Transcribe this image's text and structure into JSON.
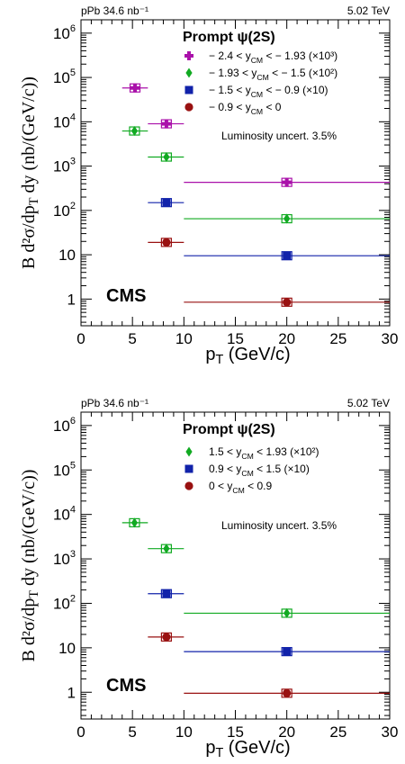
{
  "chart_data": [
    {
      "type": "scatter",
      "title": "Prompt ψ(2S)",
      "top_left_label": "pPb 34.6 nb⁻¹",
      "top_right_label": "5.02 TeV",
      "annotation": "Luminosity uncert. 3.5%",
      "logo": "CMS",
      "xlabel": "p_T (GeV/c)",
      "ylabel": "B d²σ/dp_T dy (nb/(GeV/c))",
      "xlim": [
        0,
        30
      ],
      "ylim": [
        0.25,
        2000000
      ],
      "yscale": "log",
      "xticks": [
        "0",
        "5",
        "10",
        "15",
        "20",
        "25",
        "30"
      ],
      "yticks": [
        "1",
        "10",
        "10²",
        "10³",
        "10⁴",
        "10⁵",
        "10⁶"
      ],
      "series": [
        {
          "name": "− 2.4 < y_CM < − 1.93 (×10³)",
          "color": "#aa11aa",
          "marker": "cross",
          "points": [
            {
              "x": 5.25,
              "y": 58000,
              "xlow": 4.0,
              "xhigh": 6.5
            },
            {
              "x": 8.3,
              "y": 9000,
              "xlow": 6.5,
              "xhigh": 10.0
            },
            {
              "x": 20.0,
              "y": 430,
              "xlow": 10.0,
              "xhigh": 30.0
            }
          ]
        },
        {
          "name": "− 1.93 < y_CM < − 1.5 (×10²)",
          "color": "#11aa22",
          "marker": "diamond",
          "points": [
            {
              "x": 5.2,
              "y": 6200,
              "xlow": 4.0,
              "xhigh": 6.5
            },
            {
              "x": 8.3,
              "y": 1600,
              "xlow": 6.5,
              "xhigh": 10.0
            },
            {
              "x": 20.0,
              "y": 65,
              "xlow": 10.0,
              "xhigh": 30.0
            }
          ]
        },
        {
          "name": "− 1.5 < y_CM < − 0.9 (×10)",
          "color": "#1122aa",
          "marker": "square",
          "points": [
            {
              "x": 8.3,
              "y": 150,
              "xlow": 6.5,
              "xhigh": 10.0
            },
            {
              "x": 20.0,
              "y": 9.5,
              "xlow": 10.0,
              "xhigh": 30.0
            }
          ]
        },
        {
          "name": "− 0.9 < y_CM < 0",
          "color": "#991111",
          "marker": "circle",
          "points": [
            {
              "x": 8.3,
              "y": 19,
              "xlow": 6.5,
              "xhigh": 10.0
            },
            {
              "x": 20.0,
              "y": 0.85,
              "xlow": 10.0,
              "xhigh": 30.0
            }
          ]
        }
      ]
    },
    {
      "type": "scatter",
      "title": "Prompt ψ(2S)",
      "top_left_label": "pPb 34.6 nb⁻¹",
      "top_right_label": "5.02 TeV",
      "annotation": "Luminosity uncert. 3.5%",
      "logo": "CMS",
      "xlabel": "p_T (GeV/c)",
      "ylabel": "B d²σ/dp_T dy (nb/(GeV/c))",
      "xlim": [
        0,
        30
      ],
      "ylim": [
        0.25,
        2000000
      ],
      "yscale": "log",
      "xticks": [
        "0",
        "5",
        "10",
        "15",
        "20",
        "25",
        "30"
      ],
      "yticks": [
        "1",
        "10",
        "10²",
        "10³",
        "10⁴",
        "10⁵",
        "10⁶"
      ],
      "series": [
        {
          "name": "1.5 < y_CM < 1.93 (×10²)",
          "color": "#11aa22",
          "marker": "diamond",
          "points": [
            {
              "x": 5.2,
              "y": 6500,
              "xlow": 4.0,
              "xhigh": 6.5
            },
            {
              "x": 8.3,
              "y": 1700,
              "xlow": 6.5,
              "xhigh": 10.0
            },
            {
              "x": 20.0,
              "y": 60,
              "xlow": 10.0,
              "xhigh": 30.0
            }
          ]
        },
        {
          "name": "0.9 < y_CM < 1.5 (×10)",
          "color": "#1122aa",
          "marker": "square",
          "points": [
            {
              "x": 8.3,
              "y": 165,
              "xlow": 6.5,
              "xhigh": 10.0
            },
            {
              "x": 20.0,
              "y": 8.2,
              "xlow": 10.0,
              "xhigh": 30.0
            }
          ]
        },
        {
          "name": "0 < y_CM < 0.9",
          "color": "#991111",
          "marker": "circle",
          "points": [
            {
              "x": 8.3,
              "y": 17.5,
              "xlow": 6.5,
              "xhigh": 10.0
            },
            {
              "x": 20.0,
              "y": 0.95,
              "xlow": 10.0,
              "xhigh": 30.0
            }
          ]
        }
      ]
    }
  ]
}
